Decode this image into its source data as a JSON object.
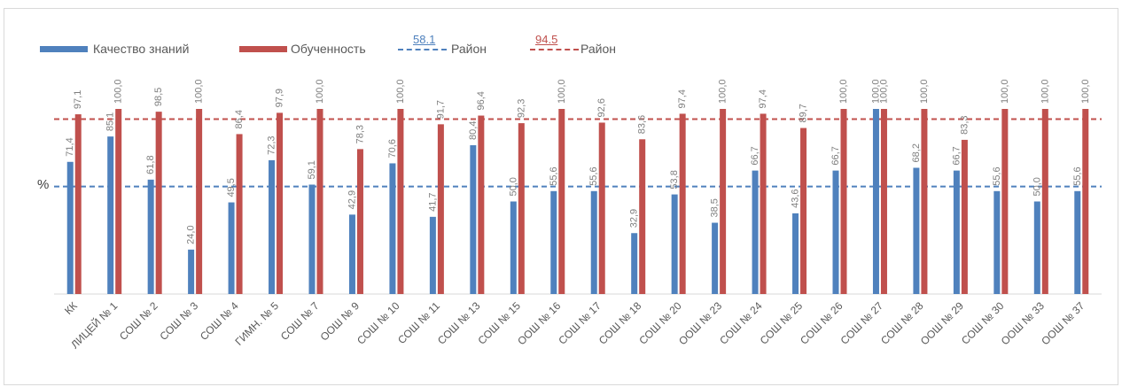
{
  "chart_data": {
    "type": "bar",
    "ylabel": "%",
    "ylim": [
      0,
      100
    ],
    "categories": [
      "КК",
      "ЛИЦЕЙ № 1",
      "СОШ № 2",
      "СОШ № 3",
      "СОШ № 4",
      "ГИМН. № 5",
      "СОШ № 7",
      "ООШ № 9",
      "СОШ № 10",
      "СОШ № 11",
      "СОШ № 13",
      "СОШ № 15",
      "ООШ № 16",
      "СОШ № 17",
      "СОШ № 18",
      "СОШ № 20",
      "ООШ № 23",
      "СОШ № 24",
      "СОШ № 25",
      "СОШ № 26",
      "СОШ № 27",
      "СОШ № 28",
      "ООШ № 29",
      "СОШ № 30",
      "ООШ № 33",
      "ООШ № 37"
    ],
    "series": [
      {
        "name": "Качество знаний",
        "color": "#4f81bd",
        "values": [
          71.4,
          85.1,
          61.8,
          24.0,
          49.5,
          72.3,
          59.1,
          42.9,
          70.6,
          41.7,
          80.4,
          50.0,
          55.6,
          55.6,
          32.9,
          53.8,
          38.5,
          66.7,
          43.6,
          66.7,
          100.0,
          68.2,
          66.7,
          55.6,
          50.0,
          55.6
        ]
      },
      {
        "name": "Обученность",
        "color": "#c0504d",
        "values": [
          97.1,
          100.0,
          98.5,
          100.0,
          86.4,
          97.9,
          100.0,
          78.3,
          100.0,
          91.7,
          96.4,
          92.3,
          100.0,
          92.6,
          83.6,
          97.4,
          100.0,
          97.4,
          89.7,
          100.0,
          100.0,
          100.0,
          83.3,
          100.0,
          100.0,
          100.0
        ]
      }
    ],
    "reference_lines": [
      {
        "name": "Район",
        "value": 58.1,
        "color": "#4f81bd"
      },
      {
        "name": "Район",
        "value": 94.5,
        "color": "#c0504d"
      }
    ],
    "legend": "top-left",
    "grid": false
  }
}
